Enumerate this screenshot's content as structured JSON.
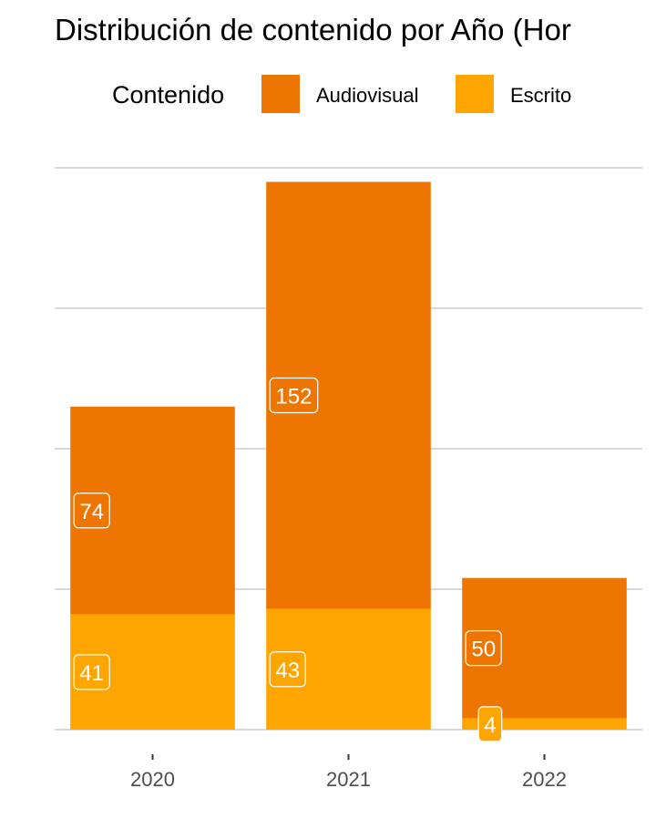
{
  "chart_data": {
    "type": "bar",
    "stacked": true,
    "title": "Distribución de contenido por Año (Hor",
    "legend": {
      "title": "Contenido",
      "position": "top"
    },
    "categories": [
      "2020",
      "2021",
      "2022"
    ],
    "series": [
      {
        "name": "Escrito",
        "color": "#FFA500",
        "values": [
          41,
          43,
          4
        ]
      },
      {
        "name": "Audiovisual",
        "color": "#EE7600",
        "values": [
          74,
          152,
          50
        ]
      }
    ],
    "ylim": [
      0,
      200
    ],
    "grid": true,
    "xlabel": "",
    "ylabel": ""
  }
}
